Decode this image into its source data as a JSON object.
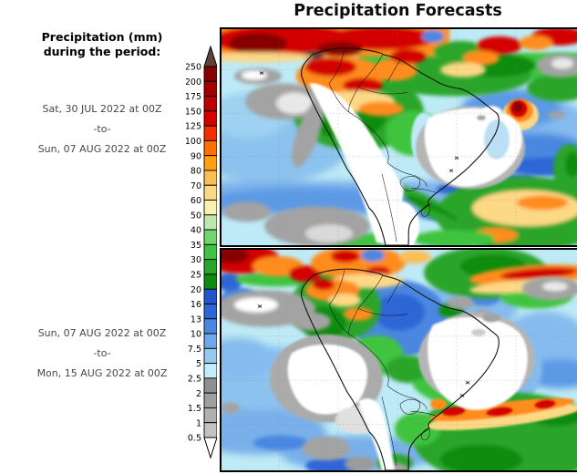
{
  "title": "Precipitation Forecasts",
  "legend": {
    "title_line1": "Precipitation (mm)",
    "title_line2": "during the period:",
    "ticks": [
      "250",
      "200",
      "175",
      "150",
      "125",
      "100",
      "90",
      "80",
      "70",
      "60",
      "50",
      "40",
      "35",
      "30",
      "25",
      "20",
      "16",
      "13",
      "10",
      "7.5",
      "5",
      "2.5",
      "2",
      "1.5",
      "1",
      "0.5"
    ],
    "segment_colors": [
      "#870000",
      "#a30000",
      "#bc0000",
      "#d40000",
      "#f03000",
      "#ff7000",
      "#ffa013",
      "#fdbd56",
      "#fdd885",
      "#fcf0ad",
      "#bde8ae",
      "#6fd66f",
      "#3fc43f",
      "#2aa52a",
      "#0f8c0f",
      "#2255cb",
      "#2e66d6",
      "#4a87e0",
      "#6fa8ea",
      "#97c8f0",
      "#c1ecf9",
      "#8f8f8f",
      "#9e9e9e",
      "#b0b0b0",
      "#c2c2c2"
    ],
    "above_max_color": "#5e4138",
    "below_min_color": "#ffffff"
  },
  "panels": [
    {
      "name": "period-1",
      "period": {
        "start": "Sat, 30 JUL 2022 at 00Z",
        "sep": "-to-",
        "end": "Sun, 07 AUG 2022 at 00Z"
      }
    },
    {
      "name": "period-2",
      "period": {
        "start": "Sun, 07 AUG 2022 at 00Z",
        "sep": "-to-",
        "end": "Mon, 15 AUG 2022 at 00Z"
      }
    }
  ]
}
